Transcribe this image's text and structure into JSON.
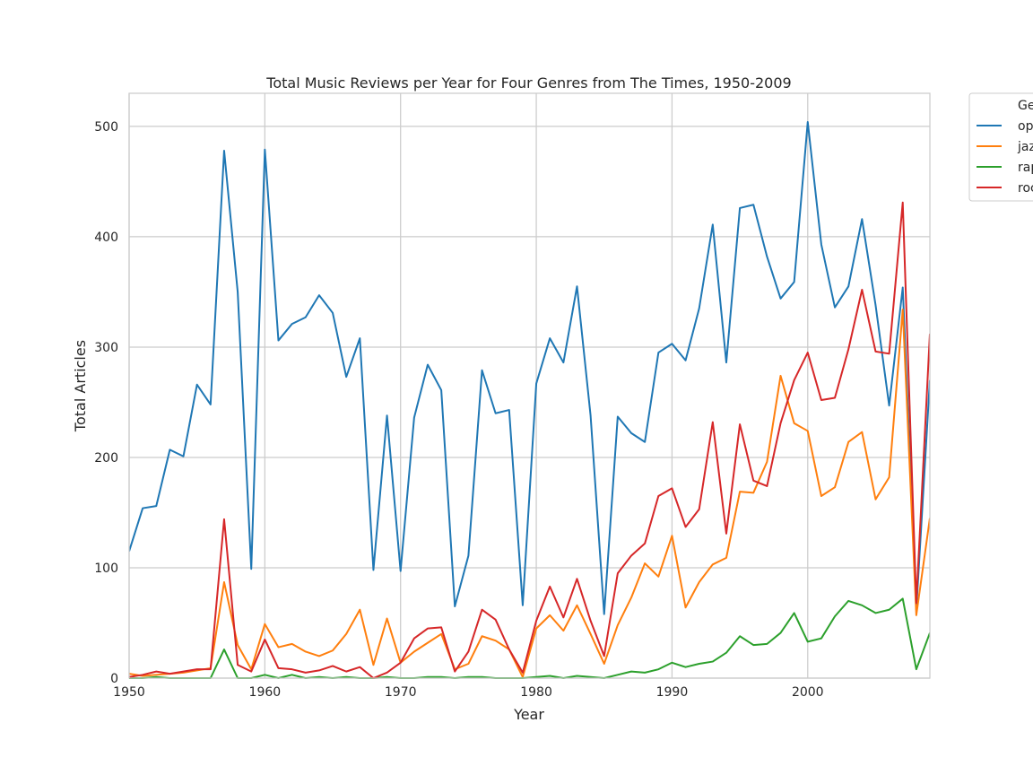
{
  "chart_data": {
    "type": "line",
    "title": "Total Music Reviews per Year for Four Genres from The Times, 1950-2009",
    "xlabel": "Year",
    "ylabel": "Total Articles",
    "xlim": [
      1950,
      2009
    ],
    "ylim": [
      0,
      530
    ],
    "xticks": [
      1950,
      1960,
      1970,
      1980,
      1990,
      2000
    ],
    "yticks": [
      0,
      100,
      200,
      300,
      400,
      500
    ],
    "grid": true,
    "legend": {
      "title": "Ge",
      "placement": "outside-top-right"
    },
    "x": [
      1950,
      1951,
      1952,
      1953,
      1954,
      1955,
      1956,
      1957,
      1958,
      1959,
      1960,
      1961,
      1962,
      1963,
      1964,
      1965,
      1966,
      1967,
      1968,
      1969,
      1970,
      1971,
      1972,
      1973,
      1974,
      1975,
      1976,
      1977,
      1978,
      1979,
      1980,
      1981,
      1982,
      1983,
      1984,
      1985,
      1986,
      1987,
      1988,
      1989,
      1990,
      1991,
      1992,
      1993,
      1994,
      1995,
      1996,
      1997,
      1998,
      1999,
      2000,
      2001,
      2002,
      2003,
      2004,
      2005,
      2006,
      2007,
      2008,
      2009
    ],
    "series": [
      {
        "name": "op",
        "color": "#1f77b4",
        "values": [
          115,
          154,
          156,
          207,
          201,
          266,
          248,
          478,
          350,
          99,
          479,
          306,
          321,
          327,
          347,
          331,
          273,
          308,
          98,
          238,
          97,
          236,
          284,
          261,
          65,
          111,
          279,
          240,
          243,
          66,
          267,
          308,
          286,
          355,
          238,
          58,
          237,
          222,
          214,
          295,
          303,
          288,
          335,
          411,
          286,
          426,
          429,
          382,
          344,
          359,
          504,
          393,
          336,
          355,
          416,
          338,
          247,
          354,
          62,
          270
        ]
      },
      {
        "name": "jaz",
        "color": "#ff7f0e",
        "values": [
          4,
          2,
          3,
          4,
          5,
          7,
          9,
          87,
          30,
          8,
          49,
          28,
          31,
          24,
          20,
          25,
          40,
          62,
          12,
          54,
          14,
          24,
          32,
          40,
          8,
          13,
          38,
          34,
          26,
          1,
          45,
          57,
          43,
          66,
          40,
          13,
          48,
          73,
          104,
          92,
          129,
          64,
          87,
          103,
          109,
          169,
          168,
          196,
          274,
          231,
          224,
          165,
          173,
          214,
          223,
          162,
          182,
          334,
          57,
          145
        ]
      },
      {
        "name": "rap",
        "color": "#2ca02c",
        "values": [
          0,
          0,
          1,
          0,
          0,
          0,
          0,
          26,
          0,
          0,
          3,
          0,
          3,
          0,
          1,
          0,
          1,
          0,
          0,
          1,
          0,
          0,
          1,
          1,
          0,
          1,
          1,
          0,
          0,
          0,
          1,
          2,
          0,
          2,
          1,
          0,
          3,
          6,
          5,
          8,
          14,
          10,
          13,
          15,
          23,
          38,
          30,
          31,
          41,
          59,
          33,
          36,
          56,
          70,
          66,
          59,
          62,
          72,
          8,
          41
        ]
      },
      {
        "name": "roc",
        "color": "#d62728",
        "values": [
          1,
          3,
          6,
          4,
          6,
          8,
          8,
          144,
          12,
          6,
          35,
          9,
          8,
          5,
          7,
          11,
          6,
          10,
          0,
          5,
          14,
          36,
          45,
          46,
          6,
          24,
          62,
          53,
          26,
          5,
          52,
          83,
          55,
          90,
          52,
          20,
          95,
          111,
          122,
          165,
          172,
          137,
          153,
          232,
          131,
          230,
          179,
          174,
          231,
          270,
          295,
          252,
          254,
          298,
          352,
          296,
          294,
          431,
          68,
          312
        ]
      }
    ]
  }
}
